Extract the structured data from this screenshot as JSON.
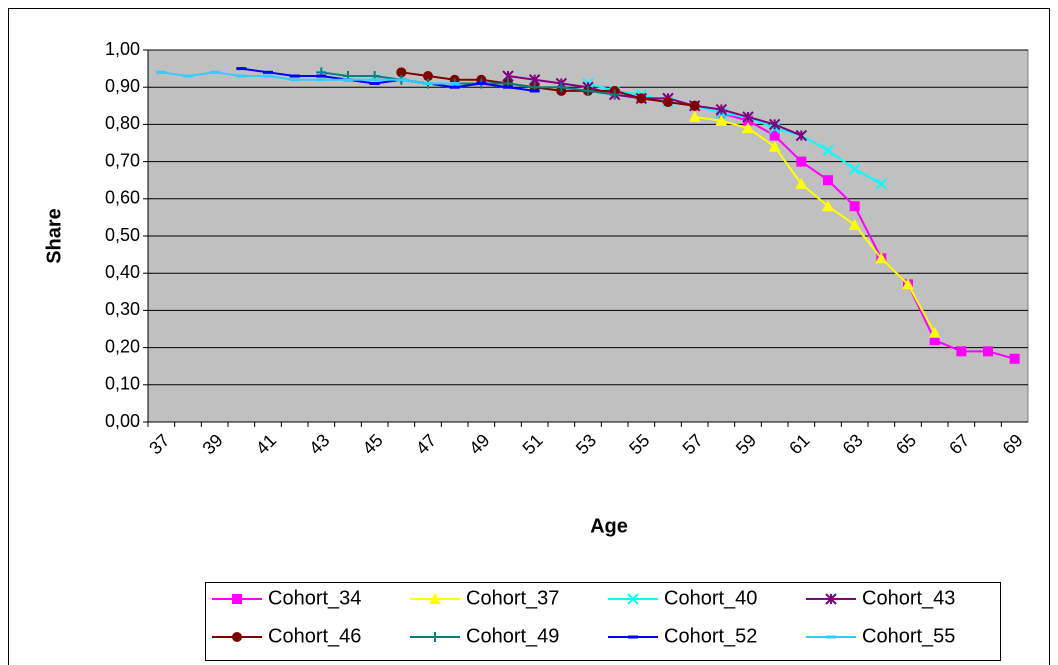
{
  "chart_data": {
    "type": "line",
    "x_label": "Age",
    "y_label": "Share",
    "categories": [
      37,
      null,
      39,
      null,
      41,
      null,
      43,
      null,
      45,
      null,
      47,
      null,
      49,
      null,
      51,
      null,
      53,
      null,
      55,
      null,
      57,
      null,
      59,
      null,
      61,
      null,
      63,
      null,
      65,
      null,
      67,
      null,
      69
    ],
    "ylim": [
      0,
      1
    ],
    "yticks": [
      {
        "value": 0,
        "label": "0,00"
      },
      {
        "value": 0.1,
        "label": "0,10"
      },
      {
        "value": 0.2,
        "label": "0,20"
      },
      {
        "value": 0.3,
        "label": "0,30"
      },
      {
        "value": 0.4,
        "label": "0,40"
      },
      {
        "value": 0.5,
        "label": "0,50"
      },
      {
        "value": 0.6,
        "label": "0,60"
      },
      {
        "value": 0.7,
        "label": "0,70"
      },
      {
        "value": 0.8,
        "label": "0,80"
      },
      {
        "value": 0.9,
        "label": "0,90"
      },
      {
        "value": 1,
        "label": "1,00"
      }
    ],
    "grid": true,
    "legend": "bottom",
    "series": [
      {
        "name": "Cohort_34",
        "color": "#ff00ff",
        "marker": "square",
        "values": [
          null,
          null,
          null,
          null,
          null,
          null,
          null,
          null,
          null,
          null,
          null,
          null,
          null,
          null,
          null,
          null,
          null,
          null,
          null,
          null,
          null,
          0.83,
          0.81,
          0.77,
          0.7,
          0.65,
          0.58,
          0.44,
          0.37,
          0.22,
          0.19,
          0.19,
          0.17
        ]
      },
      {
        "name": "Cohort_37",
        "color": "#ffff00",
        "marker": "triangle",
        "values": [
          null,
          null,
          null,
          null,
          null,
          null,
          null,
          null,
          null,
          null,
          null,
          null,
          null,
          null,
          null,
          null,
          null,
          null,
          null,
          null,
          0.82,
          0.81,
          0.79,
          0.74,
          0.64,
          0.58,
          0.53,
          0.44,
          0.37,
          0.24,
          null,
          null,
          null
        ]
      },
      {
        "name": "Cohort_40",
        "color": "#00ffff",
        "marker": "x",
        "values": [
          null,
          null,
          null,
          null,
          null,
          null,
          null,
          null,
          null,
          null,
          null,
          null,
          null,
          null,
          null,
          null,
          0.91,
          0.89,
          0.88,
          0.86,
          0.85,
          0.83,
          0.82,
          0.79,
          0.77,
          0.73,
          0.68,
          0.64,
          null,
          null,
          null,
          null,
          null
        ]
      },
      {
        "name": "Cohort_43",
        "color": "#800080",
        "marker": "star",
        "values": [
          null,
          null,
          null,
          null,
          null,
          null,
          null,
          null,
          null,
          null,
          null,
          null,
          null,
          0.93,
          0.92,
          0.91,
          0.9,
          0.88,
          0.87,
          0.87,
          0.85,
          0.84,
          0.82,
          0.8,
          0.77,
          null,
          null,
          null,
          null,
          null,
          null,
          null,
          null
        ]
      },
      {
        "name": "Cohort_46",
        "color": "#800000",
        "marker": "circle",
        "values": [
          null,
          null,
          null,
          null,
          null,
          null,
          null,
          null,
          null,
          0.94,
          0.93,
          0.92,
          0.92,
          0.91,
          0.9,
          0.89,
          0.89,
          0.89,
          0.87,
          0.86,
          0.85,
          null,
          null,
          null,
          null,
          null,
          null,
          null,
          null,
          null,
          null,
          null,
          null
        ]
      },
      {
        "name": "Cohort_49",
        "color": "#008080",
        "marker": "plus",
        "values": [
          null,
          null,
          null,
          null,
          null,
          null,
          0.94,
          0.93,
          0.93,
          0.92,
          0.91,
          0.91,
          0.91,
          0.91,
          0.9,
          0.9,
          0.89,
          0.88,
          null,
          null,
          null,
          null,
          null,
          null,
          null,
          null,
          null,
          null,
          null,
          null,
          null,
          null,
          null
        ]
      },
      {
        "name": "Cohort_52",
        "color": "#0000ff",
        "marker": "dash",
        "values": [
          null,
          null,
          null,
          0.95,
          0.94,
          0.93,
          0.93,
          0.92,
          0.91,
          0.92,
          0.91,
          0.9,
          0.91,
          0.9,
          0.89,
          null,
          null,
          null,
          null,
          null,
          null,
          null,
          null,
          null,
          null,
          null,
          null,
          null,
          null,
          null,
          null,
          null,
          null
        ]
      },
      {
        "name": "Cohort_55",
        "color": "#33ccff",
        "marker": "dash",
        "values": [
          0.94,
          0.93,
          0.94,
          0.93,
          0.93,
          0.92,
          0.92,
          0.92,
          0.92,
          0.92,
          0.91,
          0.91,
          null,
          null,
          null,
          null,
          null,
          null,
          null,
          null,
          null,
          null,
          null,
          null,
          null,
          null,
          null,
          null,
          null,
          null,
          null,
          null,
          null
        ]
      }
    ]
  }
}
